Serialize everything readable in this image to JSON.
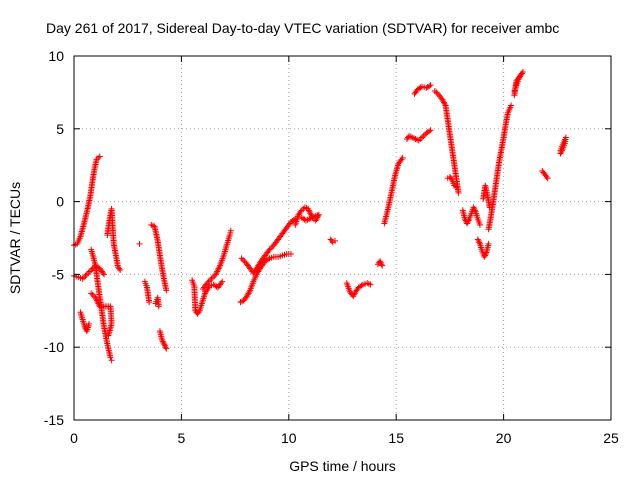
{
  "chart_data": {
    "type": "scatter",
    "title": "Day 261 of 2017, Sidereal Day-to-day VTEC variation (SDTVAR) for receiver ambc",
    "xlabel": "GPS time / hours",
    "ylabel": "SDTVAR / TECUs",
    "xlim": [
      0,
      25
    ],
    "ylim": [
      -15,
      10
    ],
    "xticks": [
      "0",
      "5",
      "10",
      "15",
      "20",
      "25"
    ],
    "yticks": [
      "10",
      "5",
      "0",
      "-5",
      "-10",
      "-15"
    ],
    "grid": true,
    "marker": "+",
    "color": "#ff0000",
    "series": [
      {
        "points": [
          [
            0.0,
            -3.0
          ],
          [
            0.15,
            -2.9
          ],
          [
            0.3,
            -2.4
          ],
          [
            0.45,
            -1.6
          ],
          [
            0.6,
            -0.7
          ],
          [
            0.75,
            0.3
          ],
          [
            0.85,
            1.3
          ],
          [
            0.95,
            2.2
          ],
          [
            1.05,
            2.9
          ],
          [
            1.2,
            3.1
          ]
        ]
      },
      {
        "points": [
          [
            0.0,
            -5.1
          ],
          [
            0.2,
            -5.2
          ],
          [
            0.4,
            -5.3
          ],
          [
            0.6,
            -5.0
          ],
          [
            0.8,
            -4.7
          ],
          [
            1.0,
            -4.4
          ],
          [
            1.2,
            -4.6
          ],
          [
            1.4,
            -5.0
          ]
        ]
      },
      {
        "points": [
          [
            0.3,
            -7.6
          ],
          [
            0.4,
            -8.1
          ],
          [
            0.5,
            -8.6
          ],
          [
            0.6,
            -8.9
          ],
          [
            0.7,
            -8.4
          ]
        ]
      },
      {
        "points": [
          [
            0.8,
            -3.3
          ],
          [
            0.9,
            -3.8
          ],
          [
            1.0,
            -4.4
          ],
          [
            1.1,
            -5.5
          ],
          [
            1.2,
            -6.6
          ],
          [
            1.3,
            -7.6
          ],
          [
            1.4,
            -8.6
          ],
          [
            1.5,
            -9.4
          ],
          [
            1.6,
            -10.1
          ],
          [
            1.7,
            -10.7
          ],
          [
            1.75,
            -10.9
          ]
        ]
      },
      {
        "points": [
          [
            1.55,
            -2.3
          ],
          [
            1.65,
            -1.3
          ],
          [
            1.75,
            -0.5
          ],
          [
            1.85,
            -2.9
          ],
          [
            1.95,
            -3.7
          ],
          [
            2.05,
            -4.5
          ],
          [
            2.15,
            -4.7
          ]
        ]
      },
      {
        "points": [
          [
            0.8,
            -6.3
          ],
          [
            1.0,
            -6.6
          ],
          [
            1.2,
            -7.2
          ],
          [
            1.7,
            -7.2
          ],
          [
            1.75,
            -8.4
          ],
          [
            1.6,
            -9.2
          ]
        ]
      },
      {
        "points": [
          [
            3.05,
            -2.9
          ]
        ]
      },
      {
        "points": [
          [
            3.3,
            -5.5
          ],
          [
            3.4,
            -5.9
          ],
          [
            3.5,
            -6.9
          ]
        ]
      },
      {
        "points": [
          [
            3.6,
            -1.6
          ],
          [
            3.75,
            -1.7
          ],
          [
            3.9,
            -2.7
          ],
          [
            4.0,
            -3.7
          ],
          [
            4.1,
            -4.6
          ],
          [
            4.2,
            -5.4
          ],
          [
            4.3,
            -6.1
          ]
        ]
      },
      {
        "points": [
          [
            3.8,
            -7.0
          ],
          [
            3.9,
            -6.6
          ],
          [
            3.95,
            -7.2
          ]
        ]
      },
      {
        "points": [
          [
            4.0,
            -8.9
          ],
          [
            4.1,
            -9.5
          ],
          [
            4.2,
            -9.8
          ],
          [
            4.3,
            -10.1
          ]
        ]
      },
      {
        "points": [
          [
            5.5,
            -5.4
          ],
          [
            5.6,
            -5.8
          ],
          [
            5.65,
            -7.5
          ],
          [
            5.75,
            -7.7
          ],
          [
            5.85,
            -7.5
          ],
          [
            5.95,
            -7.0
          ],
          [
            6.1,
            -6.3
          ],
          [
            6.3,
            -5.8
          ],
          [
            6.5,
            -5.7
          ],
          [
            6.7,
            -5.9
          ],
          [
            6.9,
            -5.5
          ]
        ]
      },
      {
        "points": [
          [
            6.0,
            -6.0
          ],
          [
            6.2,
            -5.6
          ],
          [
            6.4,
            -5.3
          ],
          [
            6.6,
            -5.0
          ],
          [
            6.8,
            -4.4
          ],
          [
            6.95,
            -3.8
          ],
          [
            7.05,
            -3.3
          ],
          [
            7.15,
            -2.8
          ],
          [
            7.25,
            -2.3
          ],
          [
            7.3,
            -2.0
          ]
        ]
      },
      {
        "points": [
          [
            7.75,
            -6.9
          ],
          [
            7.9,
            -6.8
          ],
          [
            8.05,
            -6.5
          ],
          [
            8.2,
            -6.1
          ],
          [
            8.35,
            -5.5
          ],
          [
            8.5,
            -5.0
          ],
          [
            8.7,
            -4.5
          ],
          [
            8.9,
            -4.1
          ],
          [
            9.1,
            -3.9
          ],
          [
            9.3,
            -3.8
          ],
          [
            9.5,
            -3.8
          ],
          [
            9.7,
            -3.7
          ],
          [
            9.9,
            -3.6
          ],
          [
            10.1,
            -3.6
          ]
        ]
      },
      {
        "points": [
          [
            7.8,
            -3.9
          ],
          [
            8.0,
            -4.2
          ],
          [
            8.2,
            -4.6
          ],
          [
            8.35,
            -4.9
          ],
          [
            8.5,
            -4.6
          ],
          [
            8.7,
            -4.1
          ],
          [
            8.9,
            -3.7
          ],
          [
            9.1,
            -3.3
          ],
          [
            9.3,
            -3.0
          ],
          [
            9.5,
            -2.6
          ],
          [
            9.7,
            -2.2
          ],
          [
            9.9,
            -1.8
          ],
          [
            10.1,
            -1.4
          ],
          [
            10.3,
            -1.2
          ]
        ]
      },
      {
        "points": [
          [
            10.3,
            -1.6
          ],
          [
            10.45,
            -0.9
          ],
          [
            10.6,
            -0.6
          ],
          [
            10.75,
            -0.4
          ],
          [
            10.9,
            -0.5
          ],
          [
            11.0,
            -0.8
          ],
          [
            11.1,
            -1.1
          ],
          [
            11.25,
            -1.3
          ],
          [
            11.4,
            -0.9
          ],
          [
            10.8,
            -1.3
          ],
          [
            10.6,
            -1.1
          ]
        ]
      },
      {
        "points": [
          [
            11.95,
            -2.6
          ],
          [
            12.05,
            -2.8
          ],
          [
            12.15,
            -2.7
          ]
        ]
      },
      {
        "points": [
          [
            12.7,
            -5.6
          ],
          [
            12.85,
            -6.2
          ],
          [
            13.0,
            -6.5
          ],
          [
            13.1,
            -6.2
          ],
          [
            13.25,
            -5.9
          ],
          [
            13.45,
            -5.7
          ],
          [
            13.65,
            -5.6
          ],
          [
            13.8,
            -5.7
          ]
        ]
      },
      {
        "points": [
          [
            14.15,
            -4.3
          ],
          [
            14.25,
            -4.1
          ],
          [
            14.35,
            -4.4
          ]
        ]
      },
      {
        "points": [
          [
            14.45,
            -1.5
          ],
          [
            14.55,
            -0.9
          ],
          [
            14.65,
            -0.3
          ],
          [
            14.75,
            0.4
          ],
          [
            14.85,
            1.1
          ],
          [
            14.95,
            1.8
          ],
          [
            15.1,
            2.6
          ],
          [
            15.25,
            2.9
          ],
          [
            15.3,
            3.0
          ]
        ]
      },
      {
        "points": [
          [
            15.5,
            4.3
          ],
          [
            15.6,
            4.5
          ],
          [
            15.75,
            4.4
          ],
          [
            15.9,
            4.3
          ],
          [
            16.05,
            4.2
          ],
          [
            16.2,
            4.4
          ],
          [
            16.4,
            4.7
          ],
          [
            16.6,
            4.9
          ]
        ]
      },
      {
        "points": [
          [
            15.85,
            7.4
          ],
          [
            16.0,
            7.7
          ],
          [
            16.2,
            7.9
          ],
          [
            16.4,
            7.8
          ],
          [
            16.6,
            8.0
          ]
        ]
      },
      {
        "points": [
          [
            16.8,
            7.6
          ],
          [
            17.0,
            7.3
          ],
          [
            17.15,
            7.0
          ],
          [
            17.3,
            6.6
          ],
          [
            17.4,
            5.6
          ],
          [
            17.5,
            4.6
          ],
          [
            17.6,
            3.6
          ],
          [
            17.7,
            2.6
          ],
          [
            17.8,
            1.6
          ],
          [
            17.9,
            0.6
          ]
        ]
      },
      {
        "points": [
          [
            17.4,
            1.6
          ],
          [
            17.5,
            1.7
          ],
          [
            17.6,
            1.5
          ],
          [
            17.7,
            1.1
          ],
          [
            17.8,
            1.0
          ]
        ]
      },
      {
        "points": [
          [
            18.1,
            -0.6
          ],
          [
            18.2,
            -1.2
          ],
          [
            18.3,
            -1.5
          ],
          [
            18.4,
            -1.2
          ],
          [
            18.5,
            -0.8
          ],
          [
            18.6,
            -0.4
          ],
          [
            18.7,
            -0.7
          ],
          [
            18.8,
            -1.2
          ],
          [
            18.9,
            -1.6
          ]
        ]
      },
      {
        "points": [
          [
            18.8,
            -2.6
          ],
          [
            18.9,
            -2.9
          ],
          [
            19.0,
            -3.4
          ],
          [
            19.1,
            -3.8
          ],
          [
            19.2,
            -3.5
          ],
          [
            19.3,
            -2.9
          ]
        ]
      },
      {
        "points": [
          [
            19.05,
            0.2
          ],
          [
            19.15,
            1.1
          ],
          [
            19.25,
            0.4
          ],
          [
            19.35,
            -0.4
          ]
        ]
      },
      {
        "points": [
          [
            19.3,
            -1.9
          ],
          [
            19.4,
            -1.1
          ],
          [
            19.5,
            -0.2
          ],
          [
            19.6,
            0.8
          ],
          [
            19.7,
            1.8
          ],
          [
            19.8,
            2.8
          ],
          [
            19.9,
            3.6
          ],
          [
            20.0,
            4.4
          ],
          [
            20.1,
            5.3
          ],
          [
            20.2,
            6.1
          ],
          [
            20.35,
            6.6
          ]
        ]
      },
      {
        "points": [
          [
            20.5,
            7.6
          ],
          [
            20.6,
            8.0
          ],
          [
            20.7,
            8.4
          ],
          [
            20.8,
            8.7
          ],
          [
            20.9,
            8.9
          ],
          [
            20.6,
            8.3
          ],
          [
            20.5,
            7.3
          ]
        ]
      },
      {
        "points": [
          [
            21.8,
            2.1
          ],
          [
            21.95,
            1.8
          ],
          [
            22.05,
            1.6
          ]
        ]
      },
      {
        "points": [
          [
            22.65,
            3.3
          ],
          [
            22.75,
            3.6
          ],
          [
            22.85,
            4.0
          ],
          [
            22.9,
            4.4
          ],
          [
            22.75,
            3.9
          ],
          [
            22.65,
            3.5
          ]
        ]
      }
    ]
  }
}
